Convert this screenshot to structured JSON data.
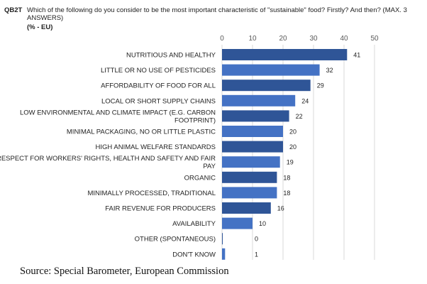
{
  "header": {
    "code": "QB2T",
    "question": "Which of the following do you consider to be the most important characteristic of \"sustainable\" food? Firstly? And then? (MAX. 3 ANSWERS)",
    "subtitle": "(% - EU)"
  },
  "source": "Source: Special Barometer, European Commission",
  "chart_data": {
    "type": "bar",
    "orientation": "horizontal",
    "xlim": [
      0,
      50
    ],
    "ticks": [
      0,
      10,
      20,
      30,
      40,
      50
    ],
    "grid": true,
    "categories": [
      [
        "NUTRITIOUS AND HEALTHY"
      ],
      [
        "LITTLE OR NO USE OF PESTICIDES"
      ],
      [
        "AFFORDABILITY OF FOOD FOR ALL"
      ],
      [
        "LOCAL OR SHORT SUPPLY CHAINS"
      ],
      [
        "LOW ENVIRONMENTAL AND CLIMATE IMPACT (E.G. CARBON",
        "FOOTPRINT)"
      ],
      [
        "MINIMAL PACKAGING, NO OR LITTLE PLASTIC"
      ],
      [
        "HIGH ANIMAL WELFARE STANDARDS"
      ],
      [
        "RESPECT FOR WORKERS' RIGHTS, HEALTH AND SAFETY AND FAIR",
        "PAY"
      ],
      [
        "ORGANIC"
      ],
      [
        "MINIMALLY PROCESSED, TRADITIONAL"
      ],
      [
        "FAIR REVENUE FOR PRODUCERS"
      ],
      [
        "AVAILABILITY"
      ],
      [
        "OTHER (SPONTANEOUS)"
      ],
      [
        "DON'T KNOW"
      ]
    ],
    "values": [
      41,
      32,
      29,
      24,
      22,
      20,
      20,
      19,
      18,
      18,
      16,
      10,
      0,
      1
    ],
    "bar_colors": [
      "#2f5597",
      "#4472c4",
      "#2f5597",
      "#4472c4",
      "#2f5597",
      "#4472c4",
      "#2f5597",
      "#4472c4",
      "#2f5597",
      "#4472c4",
      "#2f5597",
      "#4472c4",
      "#2f5597",
      "#4472c4"
    ]
  },
  "colors": {
    "grid": "#d9d9d9",
    "text": "#1f1f1f"
  }
}
